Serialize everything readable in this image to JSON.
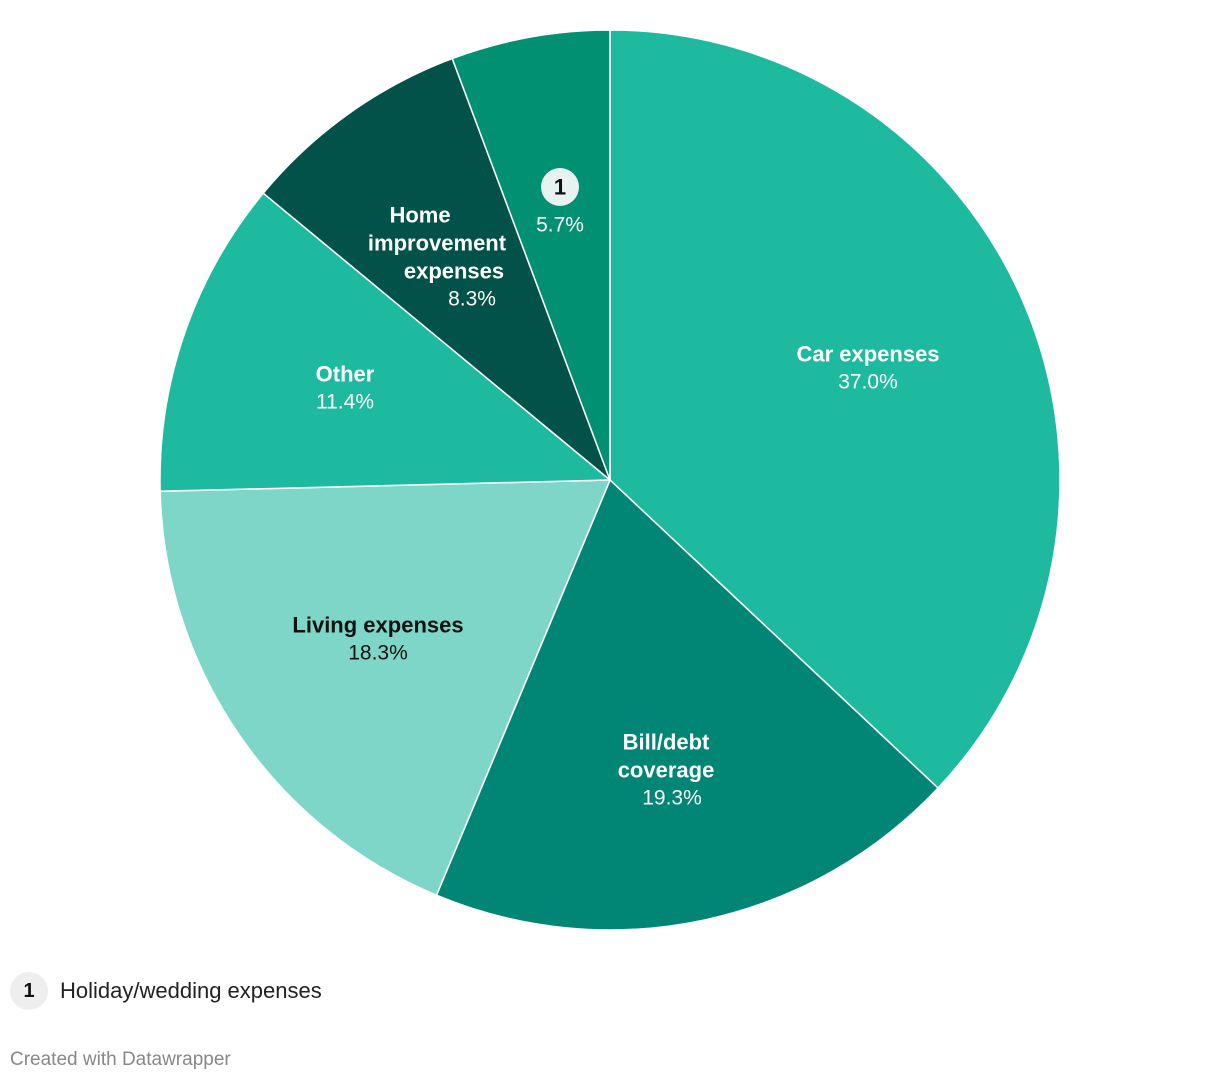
{
  "chart_data": {
    "type": "pie",
    "title": "",
    "start_angle_deg": 0,
    "direction": "clockwise",
    "slices": [
      {
        "label": "Car expenses",
        "value": 37.0,
        "value_label": "37.0%",
        "color": "#1eba9f",
        "text_color": "#ffffff"
      },
      {
        "label": "Bill/debt coverage",
        "value": 19.3,
        "value_label": "19.3%",
        "color": "#018574",
        "text_color": "#ffffff"
      },
      {
        "label": "Living expenses",
        "value": 18.3,
        "value_label": "18.3%",
        "color": "#7dd6c7",
        "text_color": "#111111"
      },
      {
        "label": "Other",
        "value": 11.4,
        "value_label": "11.4%",
        "color": "#1eba9f",
        "text_color": "#ffffff"
      },
      {
        "label": "Home improvement expenses",
        "value": 8.3,
        "value_label": "8.3%",
        "color": "#02524a",
        "text_color": "#ffffff"
      },
      {
        "label": "1",
        "value": 5.7,
        "value_label": "5.7%",
        "color": "#029072",
        "text_color": "#ffffff",
        "badge": true
      }
    ]
  },
  "footnote": {
    "badge": "1",
    "text": "Holiday/wedding expenses"
  },
  "credit": "Created with Datawrapper"
}
